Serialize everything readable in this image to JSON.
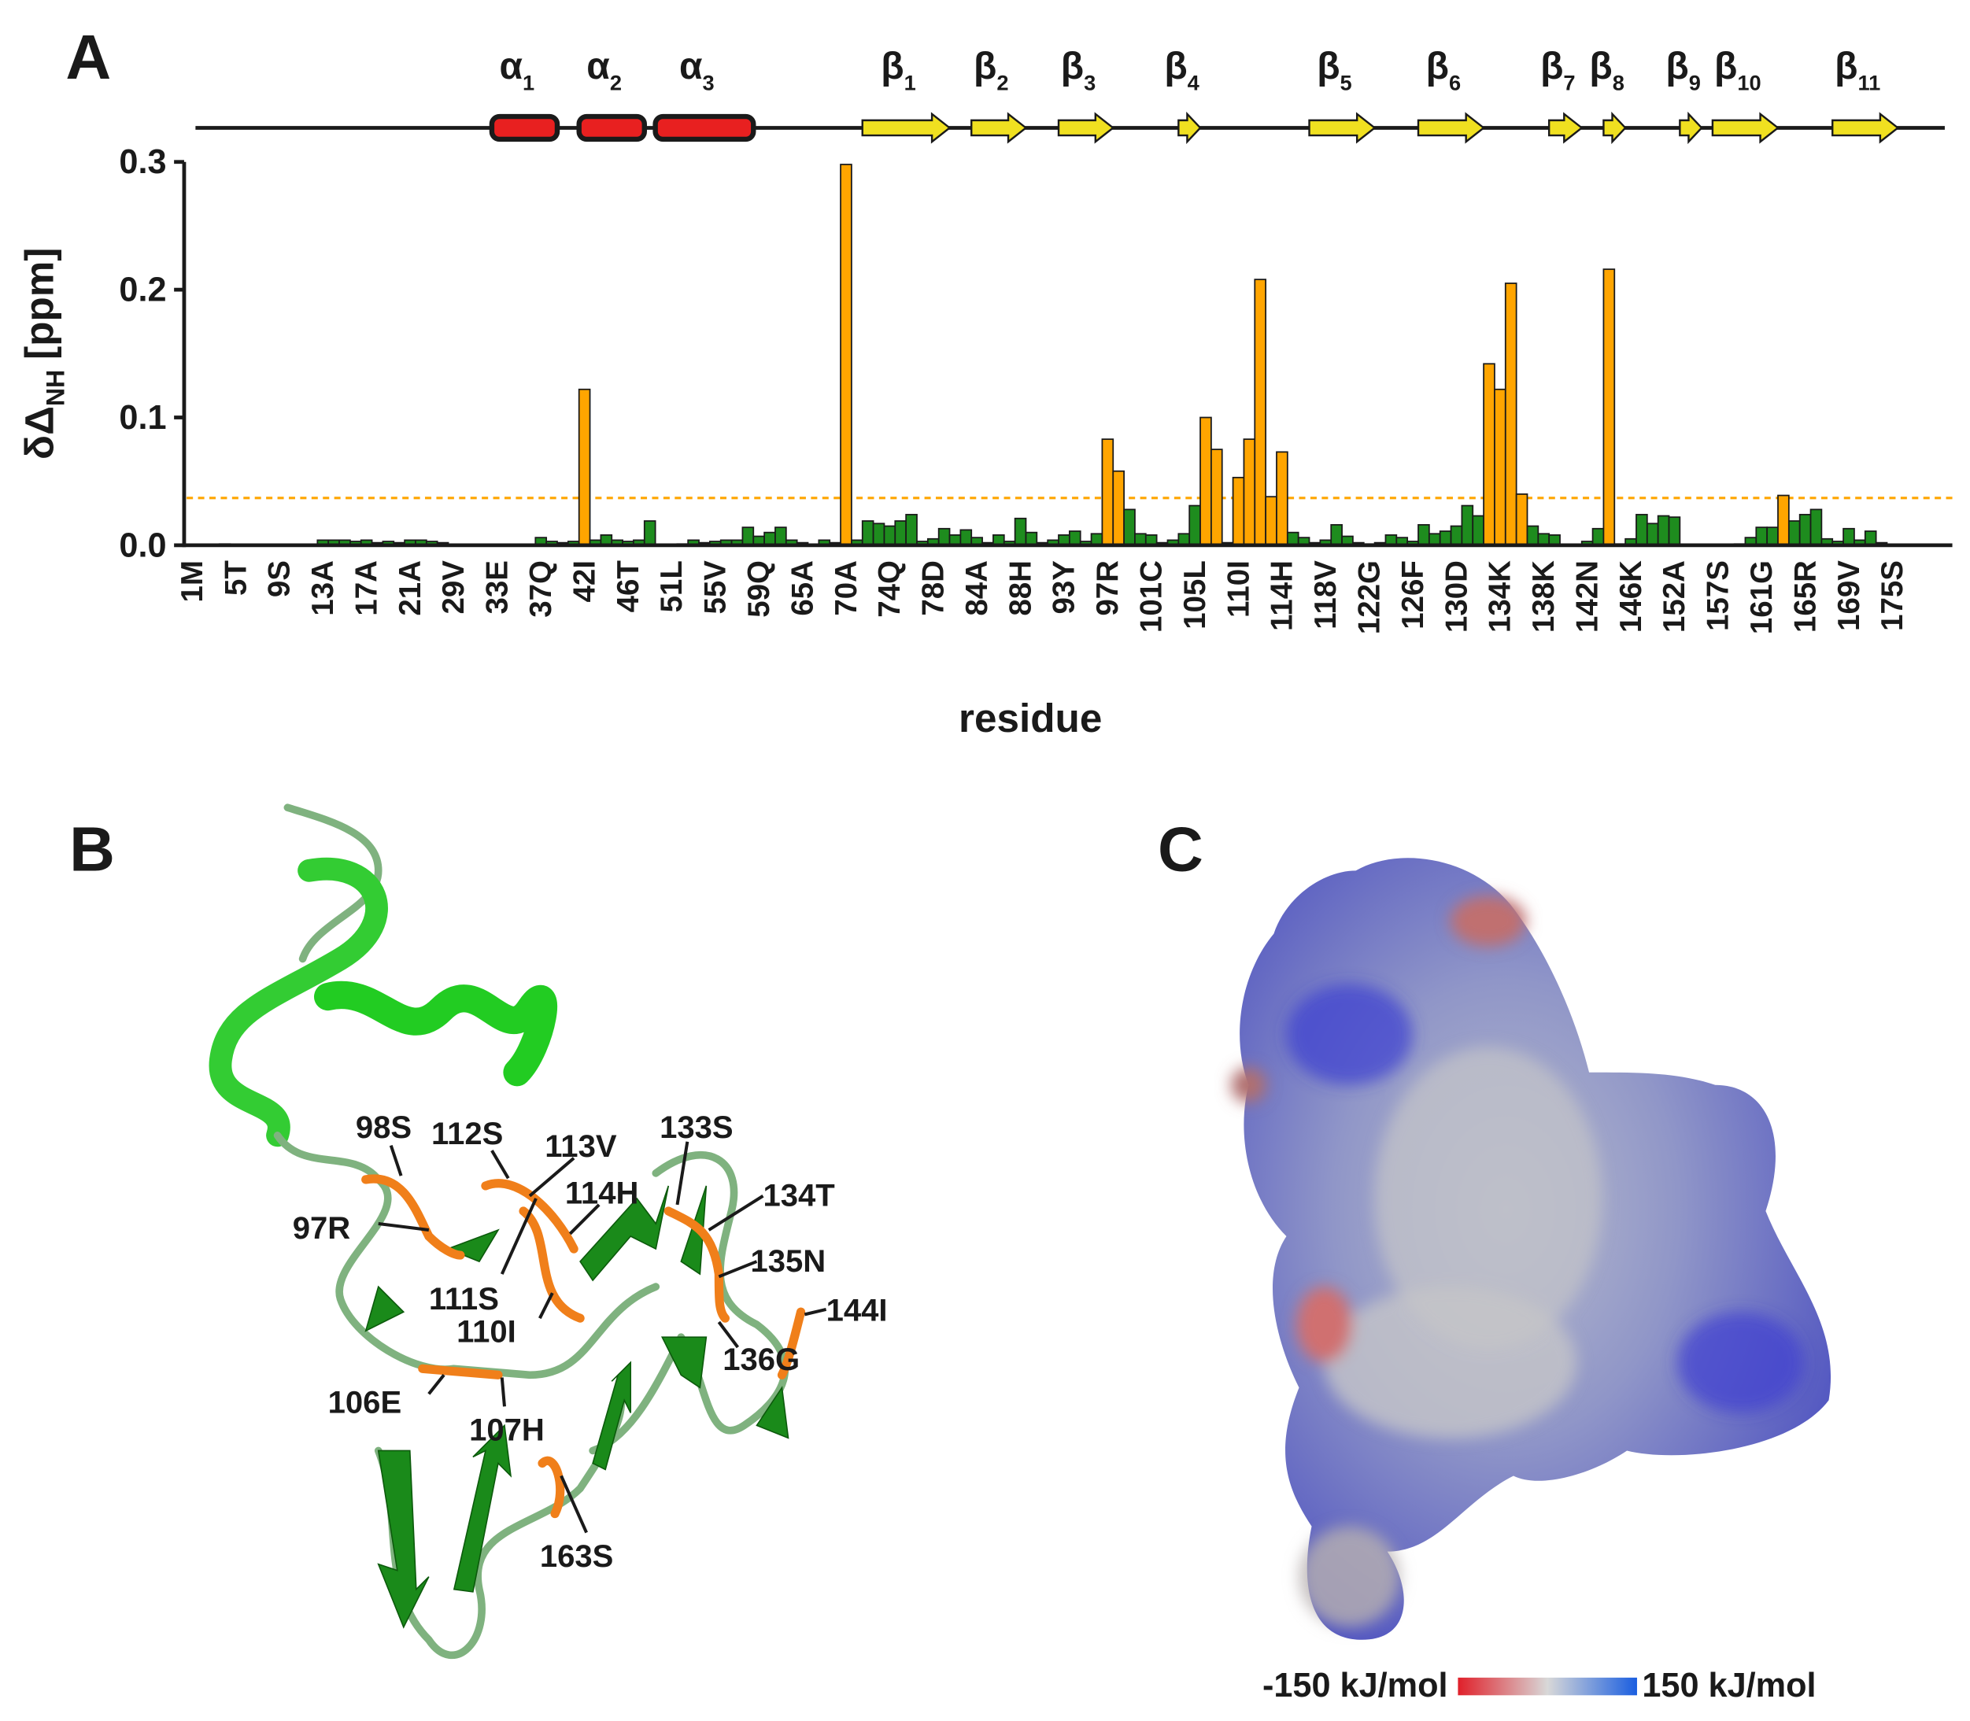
{
  "chart_data": {
    "type": "bar",
    "panel_label": "A",
    "ylabel": {
      "main": "δΔ",
      "sub": "NH",
      "unit": "[ppm]"
    },
    "xlabel": "residue",
    "ylim": [
      0,
      0.3
    ],
    "yticks": [
      {
        "value": 0,
        "label": "0.0"
      },
      0.1,
      0.2,
      0.3
    ],
    "grid": false,
    "color": "#1e8c1e",
    "highlight_color": "#ffa500",
    "threshold": 0.037,
    "categories": [
      "1M",
      null,
      null,
      null,
      "5T",
      null,
      null,
      null,
      "9S",
      null,
      null,
      null,
      "13A",
      null,
      null,
      null,
      "17A",
      null,
      null,
      null,
      "21A",
      null,
      null,
      null,
      "29V",
      null,
      null,
      null,
      "33E",
      null,
      null,
      null,
      "37Q",
      null,
      null,
      null,
      "42I",
      null,
      null,
      null,
      "46T",
      null,
      null,
      null,
      "51L",
      null,
      null,
      null,
      "55V",
      null,
      null,
      null,
      "59Q",
      null,
      null,
      null,
      "65A",
      null,
      null,
      null,
      "70A",
      null,
      null,
      null,
      "74Q",
      null,
      null,
      null,
      "78D",
      null,
      null,
      null,
      "84A",
      null,
      null,
      null,
      "88H",
      null,
      null,
      null,
      "93Y",
      null,
      null,
      null,
      "97R",
      null,
      null,
      null,
      "101C",
      null,
      null,
      null,
      "105L",
      null,
      null,
      null,
      "110I",
      null,
      null,
      null,
      "114H",
      null,
      null,
      null,
      "118V",
      null,
      null,
      null,
      "122G",
      null,
      null,
      null,
      "126F",
      null,
      null,
      null,
      "130D",
      null,
      null,
      null,
      "134K",
      null,
      null,
      null,
      "138K",
      null,
      null,
      null,
      "142N",
      null,
      null,
      null,
      "146K",
      null,
      null,
      null,
      "152A",
      null,
      null,
      null,
      "157S",
      null,
      null,
      null,
      "161G",
      null,
      null,
      null,
      "165R",
      null,
      null,
      null,
      "169V",
      null,
      null,
      null,
      "175S",
      null,
      null,
      null,
      null,
      null
    ],
    "values": [
      0,
      0,
      0,
      0.001,
      0,
      0,
      0,
      0,
      0,
      0,
      0,
      0,
      0.004,
      0.004,
      0.004,
      0.003,
      0.004,
      0.002,
      0.003,
      0.002,
      0.004,
      0.004,
      0.003,
      0.002,
      0,
      0,
      0,
      0,
      0,
      0,
      0,
      0,
      0.006,
      0.003,
      0.002,
      0.003,
      0.122,
      0.004,
      0.008,
      0.004,
      0.003,
      0.004,
      0.019,
      0,
      0,
      0.001,
      0.004,
      0.002,
      0.003,
      0.004,
      0.004,
      0.014,
      0.007,
      0.01,
      0.014,
      0.004,
      0.002,
      0,
      0.004,
      0.002,
      0.298,
      0.004,
      0.019,
      0.017,
      0.015,
      0.019,
      0.024,
      0.003,
      0.005,
      0.013,
      0.008,
      0.012,
      0.006,
      0.002,
      0.008,
      0.003,
      0.021,
      0.01,
      0.002,
      0.004,
      0.008,
      0.011,
      0.003,
      0.009,
      0.083,
      0.058,
      0.028,
      0.009,
      0.008,
      0.002,
      0.004,
      0.009,
      0.031,
      0.1,
      0.075,
      0.002,
      0.053,
      0.083,
      0.208,
      0.038,
      0.073,
      0.01,
      0.006,
      0.002,
      0.004,
      0.016,
      0.007,
      0.002,
      0.001,
      0.002,
      0.008,
      0.006,
      0.003,
      0.016,
      0.009,
      0.011,
      0.015,
      0.031,
      0.023,
      0.142,
      0.122,
      0.205,
      0.04,
      0.015,
      0.009,
      0.008,
      0,
      0,
      0.003,
      0.013,
      0.216,
      0.001,
      0.005,
      0.024,
      0.017,
      0.023,
      0.022,
      0,
      0,
      0,
      0,
      0,
      0.001,
      0.006,
      0.014,
      0.014,
      0.039,
      0.019,
      0.024,
      0.028,
      0.005,
      0.003,
      0.013,
      0.004,
      0.011,
      0.002,
      0,
      0,
      0,
      0,
      0,
      0
    ],
    "secondary_structure": [
      {
        "kind": "helix",
        "label": "α",
        "sub": "1",
        "start": 28,
        "end": 33
      },
      {
        "kind": "helix",
        "label": "α",
        "sub": "2",
        "start": 36,
        "end": 41
      },
      {
        "kind": "helix",
        "label": "α",
        "sub": "3",
        "start": 43,
        "end": 51
      },
      {
        "kind": "strand",
        "label": "β",
        "sub": "1",
        "start": 62,
        "end": 69
      },
      {
        "kind": "strand",
        "label": "β",
        "sub": "2",
        "start": 72,
        "end": 76
      },
      {
        "kind": "strand",
        "label": "β",
        "sub": "3",
        "start": 80,
        "end": 84
      },
      {
        "kind": "strand",
        "label": "β",
        "sub": "4",
        "start": 91,
        "end": 92
      },
      {
        "kind": "strand",
        "label": "β",
        "sub": "5",
        "start": 103,
        "end": 108
      },
      {
        "kind": "strand",
        "label": "β",
        "sub": "6",
        "start": 113,
        "end": 118
      },
      {
        "kind": "strand",
        "label": "β",
        "sub": "7",
        "start": 125,
        "end": 127
      },
      {
        "kind": "strand",
        "label": "β",
        "sub": "8",
        "start": 130,
        "end": 131
      },
      {
        "kind": "strand",
        "label": "β",
        "sub": "9",
        "start": 137,
        "end": 138
      },
      {
        "kind": "strand",
        "label": "β",
        "sub": "10",
        "start": 140,
        "end": 145
      },
      {
        "kind": "strand",
        "label": "β",
        "sub": "11",
        "start": 151,
        "end": 156
      }
    ]
  },
  "panel_b": {
    "letter": "B",
    "labels": [
      "98S",
      "112S",
      "113V",
      "114H",
      "133S",
      "134T",
      "97R",
      "135N",
      "111S",
      "110I",
      "144I",
      "136G",
      "106E",
      "107H",
      "163S"
    ]
  },
  "panel_c": {
    "letter": "C",
    "colorbar": {
      "min_label": "-150 kJ/mol",
      "max_label": "150 kJ/mol"
    }
  }
}
